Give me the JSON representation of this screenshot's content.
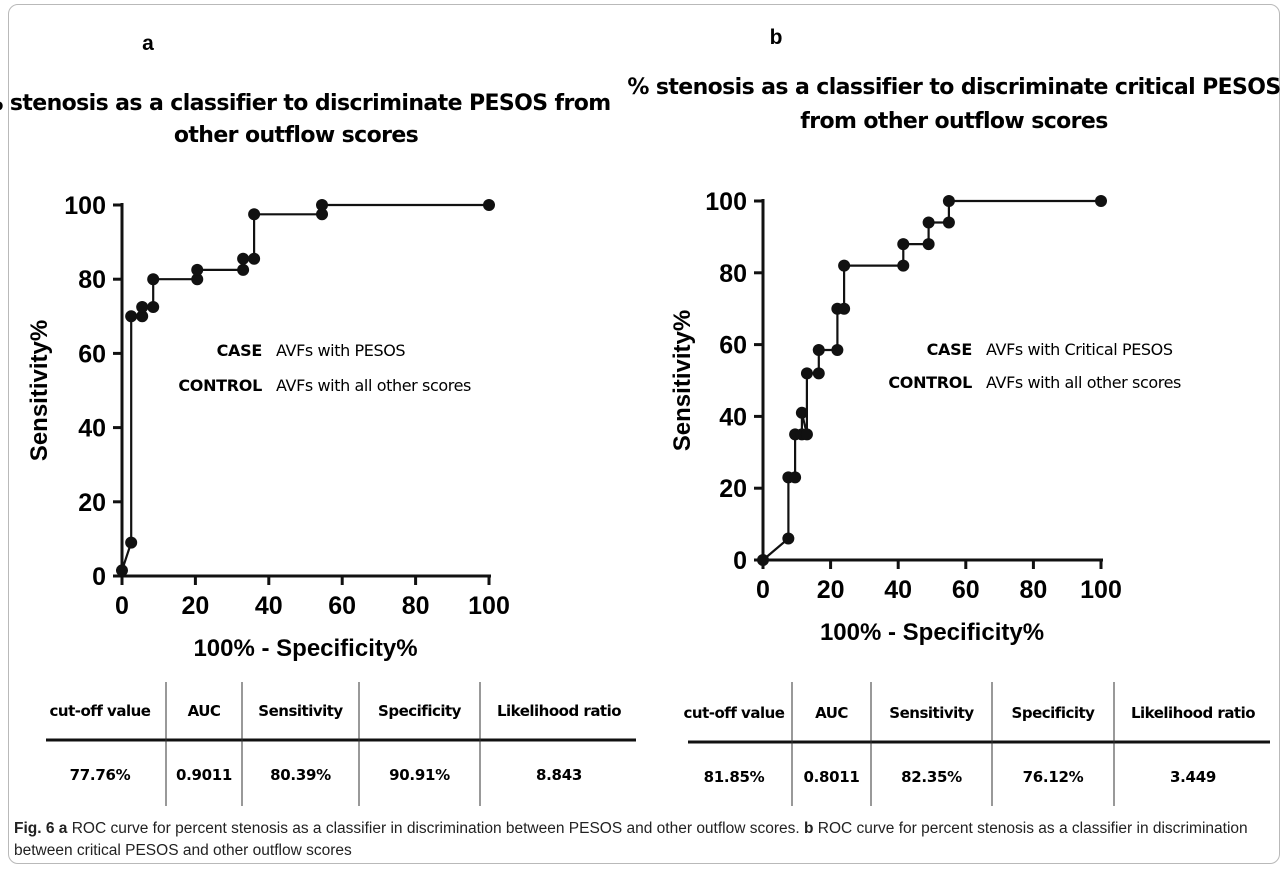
{
  "chart_data": [
    {
      "panel": "a",
      "type": "line",
      "title_lines": [
        "% stenosis as a classifier to discriminate PESOS from",
        "other outflow scores"
      ],
      "xlabel": "100% - Specificity%",
      "ylabel": "Sensitivity%",
      "xlim": [
        0,
        100
      ],
      "ylim": [
        0,
        100
      ],
      "x_ticks": [
        "0",
        "20",
        "40",
        "60",
        "80",
        "100"
      ],
      "y_ticks": [
        "0",
        "20",
        "40",
        "60",
        "80",
        "100"
      ],
      "grid": false,
      "series": [
        {
          "x": [
            0,
            2.5,
            2.5,
            5.5,
            5.5,
            8.5,
            8.5,
            20.5,
            20.5,
            33,
            33,
            36,
            36,
            54.5,
            54.5,
            100
          ],
          "y": [
            1.5,
            9,
            70,
            70,
            72.5,
            72.5,
            80,
            80,
            82.5,
            82.5,
            85.5,
            85.5,
            97.5,
            97.5,
            100,
            100
          ]
        }
      ],
      "legend": [
        {
          "key": "CASE",
          "value": "AVFs with PESOS"
        },
        {
          "key": "CONTROL",
          "value": "AVFs with all other scores"
        }
      ],
      "table": {
        "headers": [
          "cut-off value",
          "AUC",
          "Sensitivity",
          "Specificity",
          "Likelihood ratio"
        ],
        "row": [
          "77.76%",
          "0.9011",
          "80.39%",
          "90.91%",
          "8.843"
        ]
      }
    },
    {
      "panel": "b",
      "type": "line",
      "title_lines": [
        "% stenosis as a classifier to discriminate critical PESOS",
        "from other outflow scores"
      ],
      "xlabel": "100% - Specificity%",
      "ylabel": "Sensitivity%",
      "xlim": [
        0,
        100
      ],
      "ylim": [
        0,
        100
      ],
      "x_ticks": [
        "0",
        "20",
        "40",
        "60",
        "80",
        "100"
      ],
      "y_ticks": [
        "0",
        "20",
        "40",
        "60",
        "80",
        "100"
      ],
      "grid": false,
      "series": [
        {
          "x": [
            0,
            7.5,
            7.5,
            9.5,
            9.5,
            11.5,
            11.5,
            13,
            13,
            16.5,
            16.5,
            22,
            22,
            24,
            24,
            41.5,
            41.5,
            49,
            49,
            55,
            55,
            100
          ],
          "y": [
            0,
            6,
            23,
            23,
            35,
            35,
            41,
            35,
            52,
            52,
            58.5,
            58.5,
            70,
            70,
            82,
            82,
            88,
            88,
            94,
            94,
            100,
            100
          ]
        }
      ],
      "legend": [
        {
          "key": "CASE",
          "value": "AVFs with  Critical PESOS"
        },
        {
          "key": "CONTROL",
          "value": "AVFs with all other scores"
        }
      ],
      "table": {
        "headers": [
          "cut-off value",
          "AUC",
          "Sensitivity",
          "Specificity",
          "Likelihood ratio"
        ],
        "row": [
          "81.85%",
          "0.8011",
          "82.35%",
          "76.12%",
          "3.449"
        ]
      }
    }
  ],
  "caption": {
    "label": "Fig. 6",
    "a_letter": "a",
    "a_text": " ROC curve for percent stenosis as a classifier in discrimination between PESOS and other outflow scores. ",
    "b_letter": "b",
    "b_text": " ROC curve for percent stenosis as a classifier in discrimination between critical PESOS and other outflow scores"
  }
}
